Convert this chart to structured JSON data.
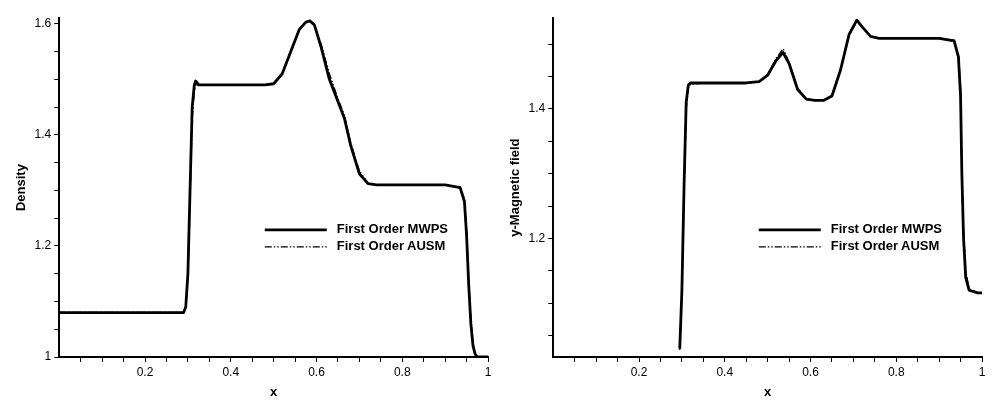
{
  "chart_data": [
    {
      "type": "line",
      "xlabel": "x",
      "ylabel": "Density",
      "xlim": [
        0,
        1
      ],
      "ylim": [
        1,
        1.61
      ],
      "xticks": [
        {
          "value": 0.05,
          "label": null
        },
        {
          "value": 0.1,
          "label": null
        },
        {
          "value": 0.15,
          "label": null
        },
        0.2,
        {
          "value": 0.25,
          "label": null
        },
        {
          "value": 0.3,
          "label": null
        },
        {
          "value": 0.35,
          "label": null
        },
        0.4,
        {
          "value": 0.45,
          "label": null
        },
        {
          "value": 0.5,
          "label": null
        },
        {
          "value": 0.55,
          "label": null
        },
        0.6,
        {
          "value": 0.65,
          "label": null
        },
        {
          "value": 0.7,
          "label": null
        },
        {
          "value": 0.75,
          "label": null
        },
        0.8,
        {
          "value": 0.85,
          "label": null
        },
        {
          "value": 0.9,
          "label": null
        },
        {
          "value": 0.95,
          "label": null
        },
        1
      ],
      "yticks": [
        1,
        {
          "value": 1.05,
          "label": null
        },
        {
          "value": 1.1,
          "label": null
        },
        {
          "value": 1.15,
          "label": null
        },
        1.2,
        {
          "value": 1.25,
          "label": null
        },
        {
          "value": 1.3,
          "label": null
        },
        {
          "value": 1.35,
          "label": null
        },
        1.4,
        {
          "value": 1.45,
          "label": null
        },
        {
          "value": 1.5,
          "label": null
        },
        {
          "value": 1.55,
          "label": null
        },
        1.6
      ],
      "grid": false,
      "legend": "center right",
      "marker": "none",
      "series": [
        {
          "name": "First Order MWPS",
          "color": "#000000",
          "line_style": "solid",
          "x": [
            0,
            0.1,
            0.2,
            0.29,
            0.295,
            0.3,
            0.305,
            0.31,
            0.315,
            0.318,
            0.325,
            0.4,
            0.48,
            0.5,
            0.52,
            0.54,
            0.56,
            0.575,
            0.585,
            0.595,
            0.61,
            0.63,
            0.65,
            0.665,
            0.68,
            0.7,
            0.72,
            0.74,
            0.8,
            0.9,
            0.935,
            0.945,
            0.95,
            0.955,
            0.96,
            0.965,
            0.97,
            0.975,
            0.98,
            1
          ],
          "values": [
            1.08,
            1.08,
            1.08,
            1.08,
            1.09,
            1.15,
            1.3,
            1.45,
            1.49,
            1.497,
            1.49,
            1.49,
            1.49,
            1.492,
            1.51,
            1.55,
            1.59,
            1.603,
            1.605,
            1.598,
            1.56,
            1.5,
            1.46,
            1.43,
            1.38,
            1.33,
            1.312,
            1.31,
            1.31,
            1.31,
            1.305,
            1.28,
            1.22,
            1.13,
            1.06,
            1.02,
            1.005,
            1,
            1,
            1
          ]
        },
        {
          "name": "First Order AUSM",
          "color": "#000000",
          "line_style": "dashed",
          "x": [
            0,
            0.1,
            0.2,
            0.29,
            0.295,
            0.3,
            0.305,
            0.31,
            0.315,
            0.318,
            0.325,
            0.4,
            0.48,
            0.5,
            0.52,
            0.54,
            0.56,
            0.575,
            0.585,
            0.595,
            0.61,
            0.63,
            0.65,
            0.665,
            0.68,
            0.7,
            0.72,
            0.74,
            0.8,
            0.9,
            0.935,
            0.945,
            0.95,
            0.955,
            0.96,
            0.965,
            0.97,
            0.975,
            0.98,
            1
          ],
          "values": [
            1.08,
            1.08,
            1.08,
            1.08,
            1.09,
            1.14,
            1.28,
            1.43,
            1.48,
            1.49,
            1.49,
            1.49,
            1.49,
            1.492,
            1.51,
            1.55,
            1.59,
            1.602,
            1.603,
            1.598,
            1.565,
            1.51,
            1.465,
            1.435,
            1.385,
            1.335,
            1.313,
            1.31,
            1.31,
            1.31,
            1.306,
            1.285,
            1.23,
            1.14,
            1.07,
            1.025,
            1.007,
            1,
            1,
            1
          ]
        }
      ]
    },
    {
      "type": "line",
      "xlabel": "x",
      "ylabel": "y-Magnetic field",
      "xlim": [
        0,
        1
      ],
      "ylim": [
        1.017,
        1.54
      ],
      "xticks": [
        {
          "value": 0.05,
          "label": null
        },
        {
          "value": 0.1,
          "label": null
        },
        {
          "value": 0.15,
          "label": null
        },
        0.2,
        {
          "value": 0.25,
          "label": null
        },
        {
          "value": 0.3,
          "label": null
        },
        {
          "value": 0.35,
          "label": null
        },
        0.4,
        {
          "value": 0.45,
          "label": null
        },
        {
          "value": 0.5,
          "label": null
        },
        {
          "value": 0.55,
          "label": null
        },
        0.6,
        {
          "value": 0.65,
          "label": null
        },
        {
          "value": 0.7,
          "label": null
        },
        {
          "value": 0.75,
          "label": null
        },
        0.8,
        {
          "value": 0.85,
          "label": null
        },
        {
          "value": 0.9,
          "label": null
        },
        {
          "value": 0.95,
          "label": null
        },
        1
      ],
      "yticks": [
        {
          "value": 1.05,
          "label": null
        },
        {
          "value": 1.1,
          "label": null
        },
        {
          "value": 1.15,
          "label": null
        },
        1.2,
        {
          "value": 1.25,
          "label": null
        },
        {
          "value": 1.3,
          "label": null
        },
        {
          "value": 1.35,
          "label": null
        },
        1.4,
        {
          "value": 1.45,
          "label": null
        },
        {
          "value": 1.5,
          "label": null
        }
      ],
      "grid": false,
      "legend": "center right",
      "marker": "none",
      "series": [
        {
          "name": "First Order MWPS",
          "color": "#000000",
          "line_style": "solid",
          "x": [
            0.295,
            0.3,
            0.305,
            0.31,
            0.315,
            0.32,
            0.35,
            0.45,
            0.48,
            0.5,
            0.52,
            0.536,
            0.55,
            0.57,
            0.59,
            0.61,
            0.63,
            0.65,
            0.67,
            0.69,
            0.708,
            0.72,
            0.74,
            0.76,
            0.8,
            0.9,
            0.935,
            0.945,
            0.95,
            0.953,
            0.957,
            0.962,
            0.97,
            0.99,
            1
          ],
          "values": [
            1.03,
            1.12,
            1.28,
            1.41,
            1.437,
            1.44,
            1.44,
            1.44,
            1.442,
            1.452,
            1.475,
            1.487,
            1.47,
            1.43,
            1.415,
            1.413,
            1.413,
            1.42,
            1.46,
            1.515,
            1.537,
            1.527,
            1.512,
            1.509,
            1.509,
            1.509,
            1.505,
            1.48,
            1.42,
            1.3,
            1.2,
            1.14,
            1.12,
            1.116,
            1.116
          ]
        },
        {
          "name": "First Order AUSM",
          "color": "#000000",
          "line_style": "dashed",
          "x": [
            0.295,
            0.3,
            0.305,
            0.31,
            0.315,
            0.32,
            0.35,
            0.45,
            0.48,
            0.5,
            0.52,
            0.536,
            0.55,
            0.57,
            0.59,
            0.61,
            0.63,
            0.65,
            0.67,
            0.69,
            0.708,
            0.72,
            0.74,
            0.76,
            0.8,
            0.9,
            0.935,
            0.945,
            0.95,
            0.953,
            0.957,
            0.962,
            0.97,
            0.99,
            1
          ],
          "values": [
            1.028,
            1.11,
            1.27,
            1.4,
            1.432,
            1.438,
            1.44,
            1.44,
            1.442,
            1.453,
            1.478,
            1.493,
            1.472,
            1.432,
            1.416,
            1.413,
            1.413,
            1.42,
            1.46,
            1.513,
            1.535,
            1.527,
            1.512,
            1.509,
            1.509,
            1.509,
            1.506,
            1.485,
            1.43,
            1.31,
            1.21,
            1.15,
            1.122,
            1.116,
            1.116
          ]
        }
      ]
    }
  ]
}
